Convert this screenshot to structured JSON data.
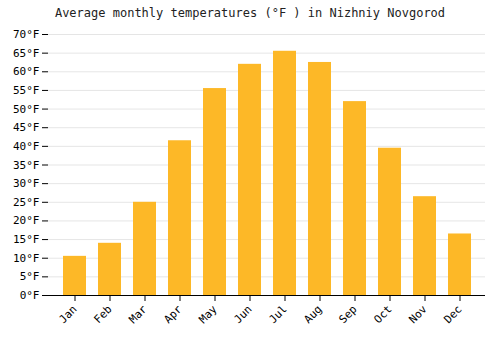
{
  "chart_data": {
    "type": "bar",
    "title": "Average monthly temperatures (°F ) in Nizhniy Novgorod",
    "categories": [
      "Jan",
      "Feb",
      "Mar",
      "Apr",
      "May",
      "Jun",
      "Jul",
      "Aug",
      "Sep",
      "Oct",
      "Nov",
      "Dec"
    ],
    "values": [
      10.5,
      14.0,
      25.0,
      41.5,
      55.5,
      62.0,
      65.5,
      62.5,
      52.0,
      39.5,
      26.5,
      16.5
    ],
    "color": "#FDB827",
    "ylim": [
      0,
      70
    ],
    "yticks": [
      {
        "value": 0,
        "label": "0°F"
      },
      {
        "value": 5,
        "label": "5°F"
      },
      {
        "value": 10,
        "label": "10°F"
      },
      {
        "value": 15,
        "label": "15°F"
      },
      {
        "value": 20,
        "label": "20°F"
      },
      {
        "value": 25,
        "label": "25°F"
      },
      {
        "value": 30,
        "label": "30°F"
      },
      {
        "value": 35,
        "label": "35°F"
      },
      {
        "value": 40,
        "label": "40°F"
      },
      {
        "value": 45,
        "label": "45°F"
      },
      {
        "value": 50,
        "label": "50°F"
      },
      {
        "value": 55,
        "label": "55°F"
      },
      {
        "value": 60,
        "label": "60°F"
      },
      {
        "value": 65,
        "label": "65°F"
      },
      {
        "value": 70,
        "label": "70°F"
      }
    ],
    "grid": true
  }
}
